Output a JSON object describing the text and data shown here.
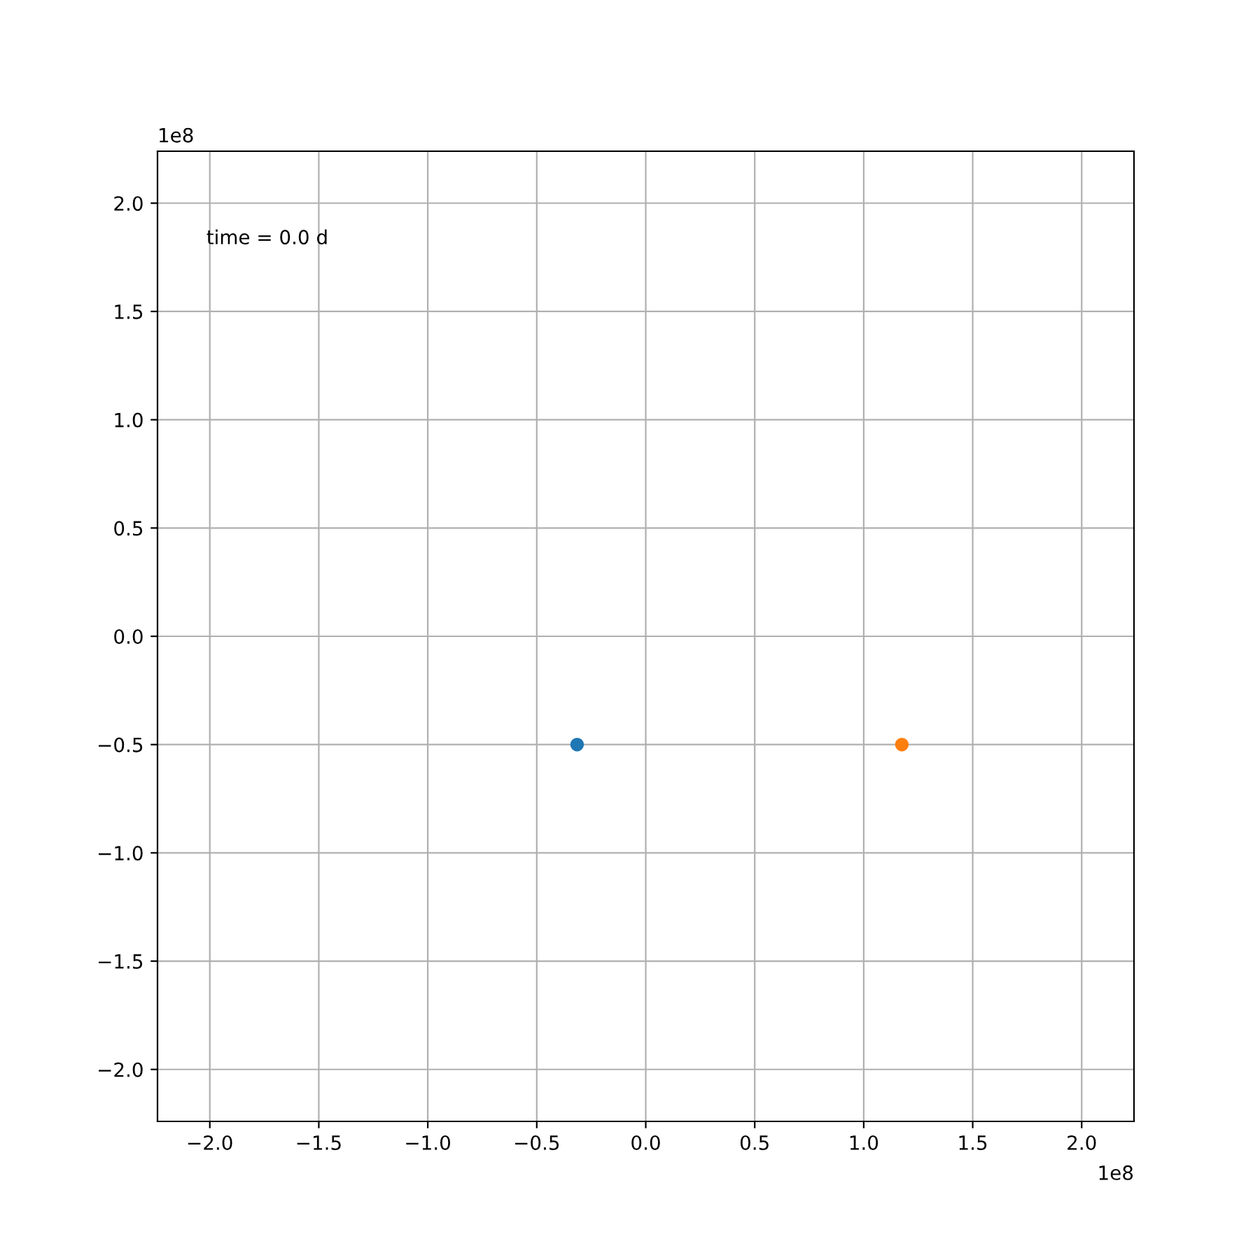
{
  "chart_data": {
    "type": "scatter",
    "marker": "circle",
    "grid": true,
    "series": [
      {
        "color": "#1f77b4",
        "x": [
          -0.315
        ],
        "values": [
          -0.5
        ]
      },
      {
        "color": "#ff7f0e",
        "x": [
          1.175
        ],
        "values": [
          -0.5
        ]
      }
    ],
    "xlim": [
      -2.24,
      2.24
    ],
    "ylim": [
      -2.24,
      2.24
    ],
    "xticks": [
      {
        "value": -2.0,
        "label": "−2.0"
      },
      {
        "value": -1.5,
        "label": "−1.5"
      },
      {
        "value": -1.0,
        "label": "−1.0"
      },
      {
        "value": -0.5,
        "label": "−0.5"
      },
      {
        "value": 0.0,
        "label": "0.0"
      },
      {
        "value": 0.5,
        "label": "0.5"
      },
      {
        "value": 1.0,
        "label": "1.0"
      },
      {
        "value": 1.5,
        "label": "1.5"
      },
      {
        "value": 2.0,
        "label": "2.0"
      }
    ],
    "yticks": [
      {
        "value": -2.0,
        "label": "−2.0"
      },
      {
        "value": -1.5,
        "label": "−1.5"
      },
      {
        "value": -1.0,
        "label": "−1.0"
      },
      {
        "value": -0.5,
        "label": "−0.5"
      },
      {
        "value": 0.0,
        "label": "0.0"
      },
      {
        "value": 0.5,
        "label": "0.5"
      },
      {
        "value": 1.0,
        "label": "1.0"
      },
      {
        "value": 1.5,
        "label": "1.5"
      },
      {
        "value": 2.0,
        "label": "2.0"
      }
    ],
    "annotations": [
      "time = 0.0 d",
      "1e8",
      "1e8"
    ]
  }
}
